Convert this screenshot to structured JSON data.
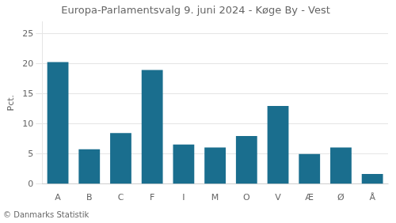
{
  "chart_data": {
    "type": "bar",
    "title": "Europa-Parlamentsvalg 9. juni 2024 - Køge By - Vest",
    "ylabel": "Pct.",
    "footer": "© Danmarks Statistik",
    "categories": [
      "A",
      "B",
      "C",
      "F",
      "I",
      "M",
      "O",
      "V",
      "Æ",
      "Ø",
      "Å"
    ],
    "values": [
      20.3,
      5.8,
      8.5,
      19.0,
      6.6,
      6.1,
      8.0,
      13.0,
      5.0,
      6.1,
      1.7
    ],
    "color": "#1a6e8e",
    "ylim": [
      0,
      27
    ],
    "yticks": [
      0,
      5,
      10,
      15,
      20,
      25
    ],
    "grid": true
  }
}
